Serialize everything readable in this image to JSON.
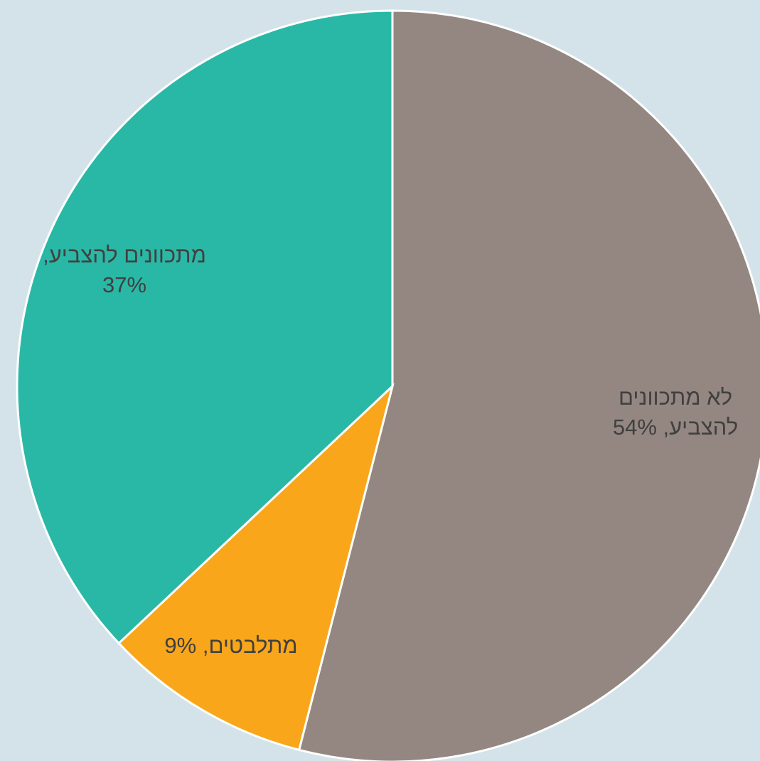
{
  "chart_data": {
    "type": "pie",
    "values": [
      54,
      9,
      37
    ],
    "value_labels": [
      "לא מתכוונים להצביע, 54%",
      "מתלבטים, 9%",
      "מתכוונים להצביע, 37%"
    ],
    "colors": [
      "#948781",
      "#f9a61a",
      "#2ab8a6"
    ]
  }
}
